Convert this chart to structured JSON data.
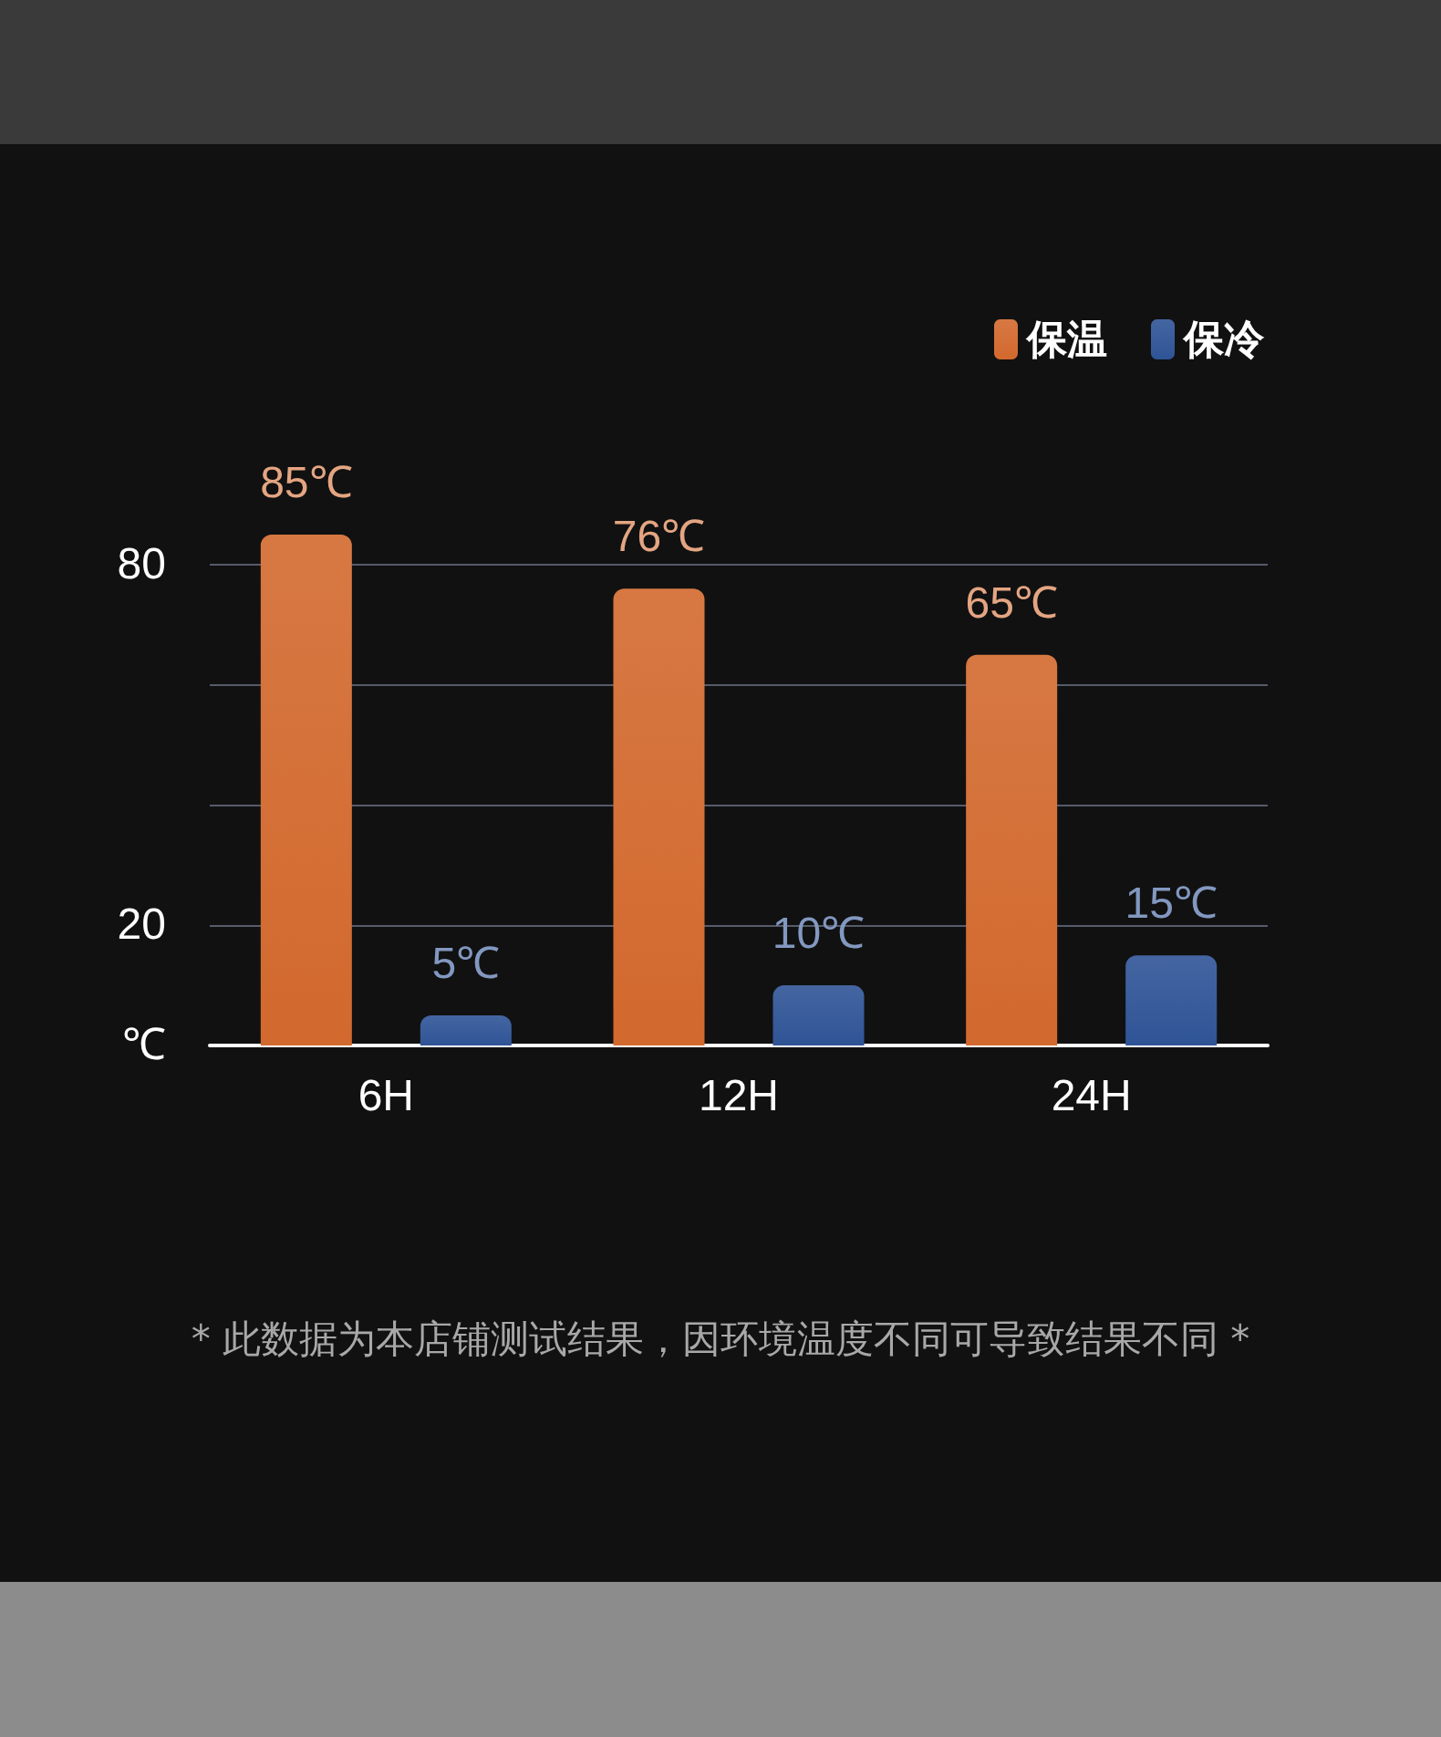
{
  "chart_data": {
    "type": "bar",
    "categories": [
      "6H",
      "12H",
      "24H"
    ],
    "series": [
      {
        "name": "保温",
        "color": "#d2692e",
        "values": [
          85,
          76,
          65
        ],
        "value_labels": [
          "85℃",
          "76℃",
          "65℃"
        ]
      },
      {
        "name": "保冷",
        "color": "#2f5496",
        "values": [
          5,
          10,
          15
        ],
        "value_labels": [
          "5℃",
          "10℃",
          "15℃"
        ]
      }
    ],
    "ylim": [
      0,
      85
    ],
    "yticks": [
      {
        "value": 0,
        "label": "℃"
      },
      20,
      {
        "value": 40,
        "label": null
      },
      {
        "value": 60,
        "label": null
      },
      80
    ],
    "grid": "y",
    "legend": "top right",
    "annotations": [
      "* 此数据为本店铺测试结果，因环境温度不同可导致结果不同 *"
    ]
  }
}
